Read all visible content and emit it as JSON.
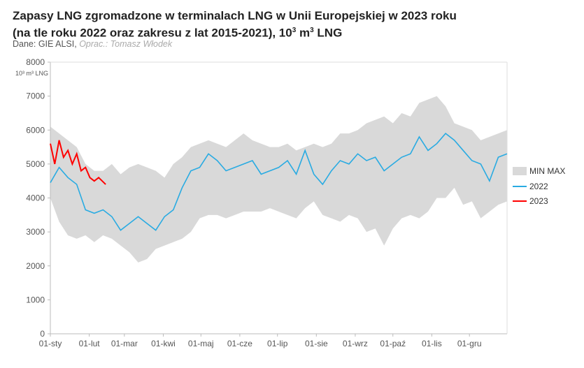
{
  "chart_data": {
    "type": "line",
    "title_line1": "Zapasy LNG zgromadzone w terminalach LNG w Unii Europejskiej w 2023 roku",
    "title_line2": "(na tle roku 2022 oraz zakresu z lat 2015-2021), 10",
    "title_sup": "3",
    "title_m": " m",
    "title_tail": " LNG",
    "source_label": "Dane: GIE ALSI,",
    "author_label": "Oprac.: Tomasz Włodek",
    "ylabel": "10³ m³ LNG",
    "ylim": [
      0,
      8000
    ],
    "yticks": [
      "0",
      "1000",
      "2000",
      "3000",
      "4000",
      "5000",
      "6000",
      "7000",
      "8000"
    ],
    "xticks": [
      "01-sty",
      "01-lut",
      "01-mar",
      "01-kwi",
      "01-maj",
      "01-cze",
      "01-lip",
      "01-sie",
      "01-wrz",
      "01-paź",
      "01-lis",
      "01-gru"
    ],
    "x_unit": "week of year (0-52)",
    "legend": [
      "MIN MAX",
      "2022",
      "2023"
    ],
    "colors": {
      "range": "#d9d9d9",
      "s2022": "#29abe2",
      "s2023": "#ff0000"
    },
    "range_max": [
      6100,
      5900,
      5700,
      5500,
      5000,
      4800,
      4800,
      5000,
      4700,
      4900,
      5000,
      4900,
      4800,
      4600,
      5000,
      5200,
      5500,
      5600,
      5700,
      5600,
      5500,
      5700,
      5900,
      5700,
      5600,
      5500,
      5500,
      5600,
      5400,
      5500,
      5600,
      5500,
      5600,
      5900,
      5900,
      6000,
      6200,
      6300,
      6400,
      6200,
      6500,
      6400,
      6800,
      6900,
      7000,
      6700,
      6200,
      6100,
      6000,
      5700,
      5800,
      5900,
      6000
    ],
    "range_min": [
      4000,
      3300,
      2900,
      2800,
      2900,
      2700,
      2900,
      2800,
      2600,
      2400,
      2100,
      2200,
      2500,
      2600,
      2700,
      2800,
      3000,
      3400,
      3500,
      3500,
      3400,
      3500,
      3600,
      3600,
      3600,
      3700,
      3600,
      3500,
      3400,
      3700,
      3900,
      3500,
      3400,
      3300,
      3500,
      3400,
      3000,
      3100,
      2600,
      3100,
      3400,
      3500,
      3400,
      3600,
      4000,
      4000,
      4300,
      3800,
      3900,
      3400,
      3600,
      3800,
      3900
    ],
    "series_2022": [
      4450,
      4900,
      4600,
      4400,
      3650,
      3550,
      3650,
      3450,
      3050,
      3250,
      3450,
      3250,
      3050,
      3450,
      3650,
      4300,
      4800,
      4900,
      5300,
      5100,
      4800,
      4900,
      5000,
      5100,
      4700,
      4800,
      4900,
      5100,
      4700,
      5400,
      4700,
      4400,
      4800,
      5100,
      5000,
      5300,
      5100,
      5200,
      4800,
      5000,
      5200,
      5300,
      5800,
      5400,
      5600,
      5900,
      5700,
      5400,
      5100,
      5000,
      4500,
      5200,
      5300
    ],
    "series_2023_x": [
      0,
      0.5,
      1,
      1.5,
      2,
      2.5,
      3,
      3.5,
      4,
      4.5,
      5,
      5.5,
      6.3
    ],
    "series_2023": [
      5600,
      5000,
      5700,
      5200,
      5400,
      5000,
      5300,
      4800,
      4900,
      4600,
      4500,
      4600,
      4400
    ]
  }
}
